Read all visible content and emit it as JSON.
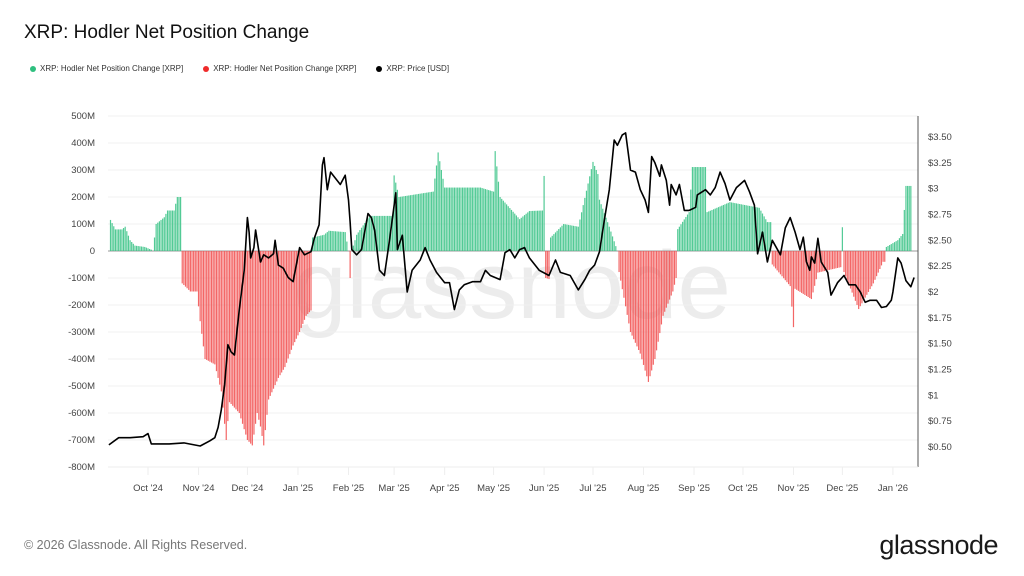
{
  "title": "XRP: Hodler Net Position Change",
  "legend": [
    {
      "label": "XRP: Hodler Net Position Change [XRP]",
      "color": "#2fbf7f"
    },
    {
      "label": "XRP: Hodler Net Position Change [XRP]",
      "color": "#ef2b2b"
    },
    {
      "label": "XRP: Price [USD]",
      "color": "#000000"
    }
  ],
  "footer": "© 2026 Glassnode. All Rights Reserved.",
  "logo": "glassnode",
  "watermark": "glassnode",
  "chart_data": {
    "type": "bar+line",
    "title": "XRP: Hodler Net Position Change",
    "colors": {
      "positive": "#3fc48a",
      "negative": "#f25555",
      "price": "#000000"
    },
    "x_ticks": [
      "Oct '24",
      "Nov '24",
      "Dec '24",
      "Jan '25",
      "Feb '25",
      "Mar '25",
      "Apr '25",
      "May '25",
      "Jun '25",
      "Jul '25",
      "Aug '25",
      "Sep '25",
      "Oct '25",
      "Nov '25",
      "Dec '25",
      "Jan '26"
    ],
    "x_tick_dates": [
      "2024-10-01",
      "2024-11-01",
      "2024-12-01",
      "2025-01-01",
      "2025-02-01",
      "2025-03-01",
      "2025-04-01",
      "2025-05-01",
      "2025-06-01",
      "2025-07-01",
      "2025-08-01",
      "2025-09-01",
      "2025-10-01",
      "2025-11-01",
      "2025-12-01",
      "2026-01-01"
    ],
    "xlim": [
      "2024-09-06",
      "2026-01-17"
    ],
    "y_left": {
      "ticks": [
        "500M",
        "400M",
        "300M",
        "200M",
        "100M",
        "0",
        "-100M",
        "-200M",
        "-300M",
        "-400M",
        "-500M",
        "-600M",
        "-700M",
        "-800M"
      ],
      "ylim": [
        -800,
        500
      ],
      "unit": "M XRP"
    },
    "y_right": {
      "ticks": [
        "$3.50",
        "$3.25",
        "$3",
        "$2.75",
        "$2.50",
        "$2.25",
        "$2",
        "$1.75",
        "$1.50",
        "$1.25",
        "$1",
        "$0.75",
        "$0.50"
      ],
      "tick_values": [
        3.5,
        3.25,
        3,
        2.75,
        2.5,
        2.25,
        2,
        1.75,
        1.5,
        1.25,
        1,
        0.75,
        0.5
      ],
      "ylim": [
        0.4,
        3.7
      ]
    },
    "grid": true,
    "legend_position": "top-left",
    "net_position_change_millions": [
      [
        "2024-09-08",
        115
      ],
      [
        "2024-09-11",
        80
      ],
      [
        "2024-09-15",
        80
      ],
      [
        "2024-09-17",
        90
      ],
      [
        "2024-09-20",
        40
      ],
      [
        "2024-09-23",
        20
      ],
      [
        "2024-09-29",
        15
      ],
      [
        "2024-10-03",
        5
      ],
      [
        "2024-10-04",
        0
      ],
      [
        "2024-10-06",
        100
      ],
      [
        "2024-10-11",
        125
      ],
      [
        "2024-10-13",
        150
      ],
      [
        "2024-10-17",
        150
      ],
      [
        "2024-10-19",
        200
      ],
      [
        "2024-10-20",
        200
      ],
      [
        "2024-10-22",
        -120
      ],
      [
        "2024-10-27",
        -150
      ],
      [
        "2024-10-31",
        -150
      ],
      [
        "2024-11-02",
        -260
      ],
      [
        "2024-11-05",
        -400
      ],
      [
        "2024-11-11",
        -420
      ],
      [
        "2024-11-15",
        -520
      ],
      [
        "2024-11-18",
        -700
      ],
      [
        "2024-11-20",
        -560
      ],
      [
        "2024-11-26",
        -600
      ],
      [
        "2024-12-01",
        -700
      ],
      [
        "2024-12-04",
        -720
      ],
      [
        "2024-12-07",
        -600
      ],
      [
        "2024-12-09",
        -650
      ],
      [
        "2024-12-11",
        -720
      ],
      [
        "2024-12-14",
        -550
      ],
      [
        "2024-12-20",
        -470
      ],
      [
        "2024-12-24",
        -430
      ],
      [
        "2024-12-29",
        -350
      ],
      [
        "2025-01-02",
        -300
      ],
      [
        "2025-01-06",
        -240
      ],
      [
        "2025-01-09",
        -220
      ],
      [
        "2025-01-10",
        50
      ],
      [
        "2025-01-17",
        60
      ],
      [
        "2025-01-20",
        75
      ],
      [
        "2025-01-30",
        70
      ],
      [
        "2025-02-01",
        0
      ],
      [
        "2025-02-02",
        -100
      ],
      [
        "2025-02-03",
        0
      ],
      [
        "2025-02-06",
        60
      ],
      [
        "2025-02-14",
        130
      ],
      [
        "2025-02-28",
        130
      ],
      [
        "2025-03-01",
        280
      ],
      [
        "2025-03-04",
        200
      ],
      [
        "2025-03-25",
        220
      ],
      [
        "2025-03-28",
        365
      ],
      [
        "2025-04-01",
        235
      ],
      [
        "2025-04-23",
        235
      ],
      [
        "2025-05-01",
        220
      ],
      [
        "2025-05-02",
        370
      ],
      [
        "2025-05-05",
        200
      ],
      [
        "2025-05-17",
        118
      ],
      [
        "2025-05-23",
        148
      ],
      [
        "2025-05-31",
        150
      ],
      [
        "2025-06-01",
        278
      ],
      [
        "2025-06-02",
        -100
      ],
      [
        "2025-06-04",
        -104
      ],
      [
        "2025-06-05",
        50
      ],
      [
        "2025-06-13",
        100
      ],
      [
        "2025-06-22",
        90
      ],
      [
        "2025-07-01",
        330
      ],
      [
        "2025-07-04",
        285
      ],
      [
        "2025-07-05",
        190
      ],
      [
        "2025-07-11",
        90
      ],
      [
        "2025-07-16",
        0
      ],
      [
        "2025-07-17",
        -78
      ],
      [
        "2025-07-24",
        -300
      ],
      [
        "2025-07-30",
        -380
      ],
      [
        "2025-08-04",
        -485
      ],
      [
        "2025-08-08",
        -400
      ],
      [
        "2025-08-13",
        -240
      ],
      [
        "2025-08-19",
        -150
      ],
      [
        "2025-08-21",
        -100
      ],
      [
        "2025-08-22",
        81
      ],
      [
        "2025-08-29",
        144
      ],
      [
        "2025-08-31",
        311
      ],
      [
        "2025-09-08",
        311
      ],
      [
        "2025-09-09",
        144
      ],
      [
        "2025-09-23",
        181
      ],
      [
        "2025-10-11",
        160
      ],
      [
        "2025-10-16",
        107
      ],
      [
        "2025-10-19",
        -50
      ],
      [
        "2025-10-30",
        -130
      ],
      [
        "2025-11-01",
        -282
      ],
      [
        "2025-11-02",
        -140
      ],
      [
        "2025-11-12",
        -178
      ],
      [
        "2025-11-16",
        -80
      ],
      [
        "2025-11-30",
        -60
      ],
      [
        "2025-12-01",
        88
      ],
      [
        "2025-12-02",
        -78
      ],
      [
        "2025-12-11",
        -215
      ],
      [
        "2025-12-20",
        -120
      ],
      [
        "2025-12-26",
        -40
      ],
      [
        "2025-12-28",
        15
      ],
      [
        "2026-01-04",
        40
      ],
      [
        "2026-01-07",
        63
      ],
      [
        "2026-01-09",
        241
      ],
      [
        "2026-01-12",
        241
      ]
    ],
    "price_usd": [
      [
        "2024-09-07",
        0.52
      ],
      [
        "2024-09-13",
        0.59
      ],
      [
        "2024-09-20",
        0.59
      ],
      [
        "2024-09-28",
        0.6
      ],
      [
        "2024-10-01",
        0.63
      ],
      [
        "2024-10-03",
        0.53
      ],
      [
        "2024-10-14",
        0.53
      ],
      [
        "2024-10-23",
        0.54
      ],
      [
        "2024-11-02",
        0.51
      ],
      [
        "2024-11-08",
        0.56
      ],
      [
        "2024-11-11",
        0.59
      ],
      [
        "2024-11-13",
        0.69
      ],
      [
        "2024-11-15",
        0.86
      ],
      [
        "2024-11-17",
        1.1
      ],
      [
        "2024-11-19",
        1.49
      ],
      [
        "2024-11-21",
        1.42
      ],
      [
        "2024-11-23",
        1.39
      ],
      [
        "2024-11-26",
        1.83
      ],
      [
        "2024-11-29",
        2.21
      ],
      [
        "2024-12-01",
        2.72
      ],
      [
        "2024-12-02",
        2.58
      ],
      [
        "2024-12-03",
        2.33
      ],
      [
        "2024-12-05",
        2.43
      ],
      [
        "2024-12-06",
        2.6
      ],
      [
        "2024-12-09",
        2.29
      ],
      [
        "2024-12-11",
        2.36
      ],
      [
        "2024-12-14",
        2.33
      ],
      [
        "2024-12-17",
        2.37
      ],
      [
        "2024-12-18",
        2.5
      ],
      [
        "2024-12-20",
        2.26
      ],
      [
        "2024-12-23",
        2.23
      ],
      [
        "2024-12-26",
        2.14
      ],
      [
        "2024-12-29",
        2.1
      ],
      [
        "2025-01-02",
        2.43
      ],
      [
        "2025-01-05",
        2.36
      ],
      [
        "2025-01-09",
        2.39
      ],
      [
        "2025-01-11",
        2.52
      ],
      [
        "2025-01-14",
        2.65
      ],
      [
        "2025-01-16",
        3.23
      ],
      [
        "2025-01-17",
        3.3
      ],
      [
        "2025-01-19",
        2.99
      ],
      [
        "2025-01-21",
        3.16
      ],
      [
        "2025-01-24",
        3.1
      ],
      [
        "2025-01-27",
        3.04
      ],
      [
        "2025-01-30",
        3.13
      ],
      [
        "2025-02-01",
        2.89
      ],
      [
        "2025-02-02",
        2.68
      ],
      [
        "2025-02-03",
        2.41
      ],
      [
        "2025-02-06",
        2.36
      ],
      [
        "2025-02-09",
        2.41
      ],
      [
        "2025-02-13",
        2.76
      ],
      [
        "2025-02-15",
        2.72
      ],
      [
        "2025-02-17",
        2.6
      ],
      [
        "2025-02-20",
        2.21
      ],
      [
        "2025-02-23",
        2.16
      ],
      [
        "2025-02-26",
        2.48
      ],
      [
        "2025-03-02",
        2.96
      ],
      [
        "2025-03-03",
        2.41
      ],
      [
        "2025-03-06",
        2.55
      ],
      [
        "2025-03-09",
        2.0
      ],
      [
        "2025-03-12",
        2.21
      ],
      [
        "2025-03-17",
        2.31
      ],
      [
        "2025-03-20",
        2.43
      ],
      [
        "2025-03-23",
        2.31
      ],
      [
        "2025-03-27",
        2.19
      ],
      [
        "2025-04-01",
        2.09
      ],
      [
        "2025-04-04",
        2.09
      ],
      [
        "2025-04-07",
        1.83
      ],
      [
        "2025-04-10",
        2.02
      ],
      [
        "2025-04-13",
        2.07
      ],
      [
        "2025-04-18",
        2.1
      ],
      [
        "2025-04-23",
        2.1
      ],
      [
        "2025-04-26",
        2.21
      ],
      [
        "2025-04-29",
        2.16
      ],
      [
        "2025-05-05",
        2.12
      ],
      [
        "2025-05-08",
        2.38
      ],
      [
        "2025-05-11",
        2.41
      ],
      [
        "2025-05-14",
        2.33
      ],
      [
        "2025-05-17",
        2.41
      ],
      [
        "2025-05-20",
        2.43
      ],
      [
        "2025-05-23",
        2.33
      ],
      [
        "2025-05-29",
        2.21
      ],
      [
        "2025-06-04",
        2.16
      ],
      [
        "2025-06-08",
        2.31
      ],
      [
        "2025-06-11",
        2.19
      ],
      [
        "2025-06-17",
        2.16
      ],
      [
        "2025-06-22",
        2.02
      ],
      [
        "2025-06-26",
        2.12
      ],
      [
        "2025-06-29",
        2.21
      ],
      [
        "2025-07-02",
        2.26
      ],
      [
        "2025-07-05",
        2.39
      ],
      [
        "2025-07-08",
        2.7
      ],
      [
        "2025-07-11",
        2.99
      ],
      [
        "2025-07-14",
        3.47
      ],
      [
        "2025-07-16",
        3.42
      ],
      [
        "2025-07-19",
        3.52
      ],
      [
        "2025-07-21",
        3.54
      ],
      [
        "2025-07-24",
        3.18
      ],
      [
        "2025-07-27",
        3.16
      ],
      [
        "2025-07-30",
        2.99
      ],
      [
        "2025-08-02",
        2.89
      ],
      [
        "2025-08-04",
        2.77
      ],
      [
        "2025-08-06",
        3.31
      ],
      [
        "2025-08-08",
        3.25
      ],
      [
        "2025-08-11",
        3.12
      ],
      [
        "2025-08-12",
        3.23
      ],
      [
        "2025-08-15",
        3.08
      ],
      [
        "2025-08-17",
        2.84
      ],
      [
        "2025-08-18",
        3.04
      ],
      [
        "2025-08-21",
        2.94
      ],
      [
        "2025-08-23",
        3.04
      ],
      [
        "2025-08-26",
        2.79
      ],
      [
        "2025-08-29",
        2.79
      ],
      [
        "2025-09-02",
        2.82
      ],
      [
        "2025-09-03",
        2.94
      ],
      [
        "2025-09-08",
        2.99
      ],
      [
        "2025-09-11",
        2.94
      ],
      [
        "2025-09-14",
        3.01
      ],
      [
        "2025-09-17",
        3.16
      ],
      [
        "2025-09-20",
        3.05
      ],
      [
        "2025-09-23",
        2.89
      ],
      [
        "2025-09-27",
        3.01
      ],
      [
        "2025-10-02",
        3.08
      ],
      [
        "2025-10-05",
        2.97
      ],
      [
        "2025-10-08",
        2.84
      ],
      [
        "2025-10-10",
        2.37
      ],
      [
        "2025-10-13",
        2.58
      ],
      [
        "2025-10-16",
        2.29
      ],
      [
        "2025-10-19",
        2.5
      ],
      [
        "2025-10-24",
        2.36
      ],
      [
        "2025-10-27",
        2.62
      ],
      [
        "2025-10-30",
        2.72
      ],
      [
        "2025-11-02",
        2.58
      ],
      [
        "2025-11-05",
        2.41
      ],
      [
        "2025-11-07",
        2.53
      ],
      [
        "2025-11-09",
        2.29
      ],
      [
        "2025-11-11",
        2.21
      ],
      [
        "2025-11-12",
        2.34
      ],
      [
        "2025-11-14",
        2.28
      ],
      [
        "2025-11-16",
        2.52
      ],
      [
        "2025-11-18",
        2.29
      ],
      [
        "2025-11-22",
        2.19
      ],
      [
        "2025-11-24",
        1.97
      ],
      [
        "2025-11-28",
        2.09
      ],
      [
        "2025-12-02",
        2.16
      ],
      [
        "2025-12-05",
        2.07
      ],
      [
        "2025-12-09",
        2.07
      ],
      [
        "2025-12-12",
        2.0
      ],
      [
        "2025-12-15",
        1.9
      ],
      [
        "2025-12-18",
        1.92
      ],
      [
        "2025-12-22",
        1.92
      ],
      [
        "2025-12-25",
        1.85
      ],
      [
        "2025-12-28",
        1.86
      ],
      [
        "2025-12-31",
        1.92
      ],
      [
        "2026-01-01",
        2.0
      ],
      [
        "2026-01-04",
        2.33
      ],
      [
        "2026-01-06",
        2.28
      ],
      [
        "2026-01-09",
        2.11
      ],
      [
        "2026-01-12",
        2.05
      ],
      [
        "2026-01-14",
        2.14
      ]
    ]
  }
}
